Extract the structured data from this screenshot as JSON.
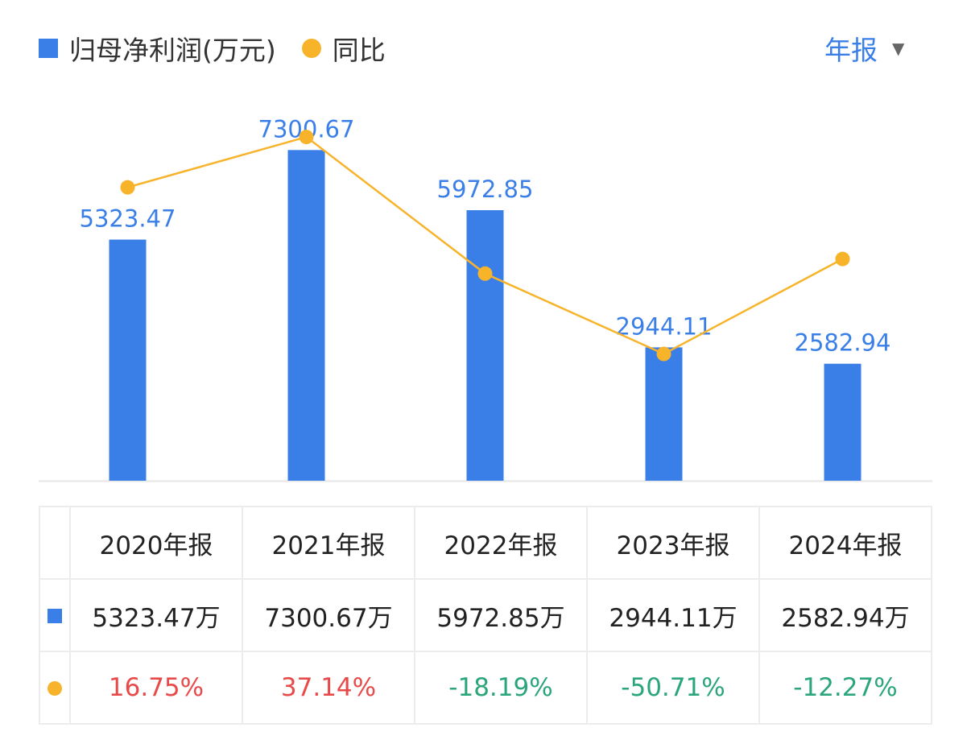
{
  "legend": {
    "bars_label": "归母净利润(万元)",
    "line_label": "同比"
  },
  "period_selector": {
    "label": "年报"
  },
  "colors": {
    "bar": "#3a7fe8",
    "line": "#f7b42b",
    "positive": "#e84a4a",
    "negative": "#2aa67a"
  },
  "chart_data": {
    "type": "bar",
    "categories": [
      "2020年报",
      "2021年报",
      "2022年报",
      "2023年报",
      "2024年报"
    ],
    "series": [
      {
        "name": "归母净利润(万元)",
        "type": "bar",
        "values": [
          5323.47,
          7300.67,
          5972.85,
          2944.11,
          2582.94
        ],
        "labels": [
          "5323.47",
          "7300.67",
          "5972.85",
          "2944.11",
          "2582.94"
        ]
      },
      {
        "name": "同比",
        "type": "line",
        "values": [
          16.75,
          37.14,
          -18.19,
          -50.71,
          -12.27
        ]
      }
    ],
    "ylim": [
      0,
      8000
    ],
    "ylim_secondary": [
      -90,
      60
    ],
    "grid": false
  },
  "table": {
    "headers": [
      "2020年报",
      "2021年报",
      "2022年报",
      "2023年报",
      "2024年报"
    ],
    "values": [
      "5323.47万",
      "7300.67万",
      "5972.85万",
      "2944.11万",
      "2582.94万"
    ],
    "yoy": [
      "16.75%",
      "37.14%",
      "-18.19%",
      "-50.71%",
      "-12.27%"
    ]
  }
}
